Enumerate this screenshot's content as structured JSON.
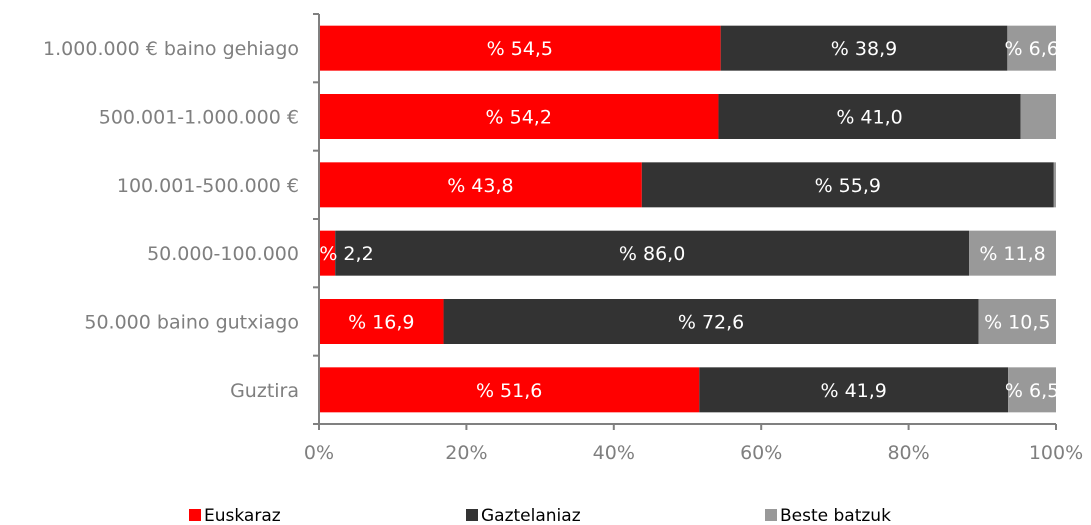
{
  "chart_data": {
    "type": "bar",
    "orientation": "horizontal",
    "stacked": "percent",
    "categories": [
      "1.000.000 € baino gehiago",
      "500.001-1.000.000 €",
      "100.001-500.000 €",
      "50.000-100.000",
      "50.000 baino gutxiago",
      "Guztira"
    ],
    "series": [
      {
        "name": "Euskaraz",
        "color": "#ff0000",
        "values": [
          54.5,
          54.2,
          43.8,
          2.2,
          16.9,
          51.6
        ],
        "labels": [
          "% 54,5",
          "% 54,2",
          "% 43,8",
          "% 2,2",
          "% 16,9",
          "% 51,6"
        ]
      },
      {
        "name": "Gaztelaniaz",
        "color": "#333333",
        "values": [
          38.9,
          41.0,
          55.9,
          86.0,
          72.6,
          41.9
        ],
        "labels": [
          "% 38,9",
          "% 41,0",
          "% 55,9",
          "% 86,0",
          "% 72,6",
          "% 41,9"
        ]
      },
      {
        "name": "Beste batzuk",
        "color": "#999999",
        "values": [
          6.6,
          4.8,
          0.3,
          11.8,
          10.5,
          6.5
        ],
        "labels": [
          "% 6,6",
          "",
          "",
          "% 11,8",
          "% 10,5",
          "% 6,5"
        ]
      }
    ],
    "xticks": [
      "0%",
      "20%",
      "40%",
      "60%",
      "80%",
      "100%"
    ],
    "xlim": [
      0,
      100
    ],
    "grid": false,
    "legend_position": "bottom"
  }
}
